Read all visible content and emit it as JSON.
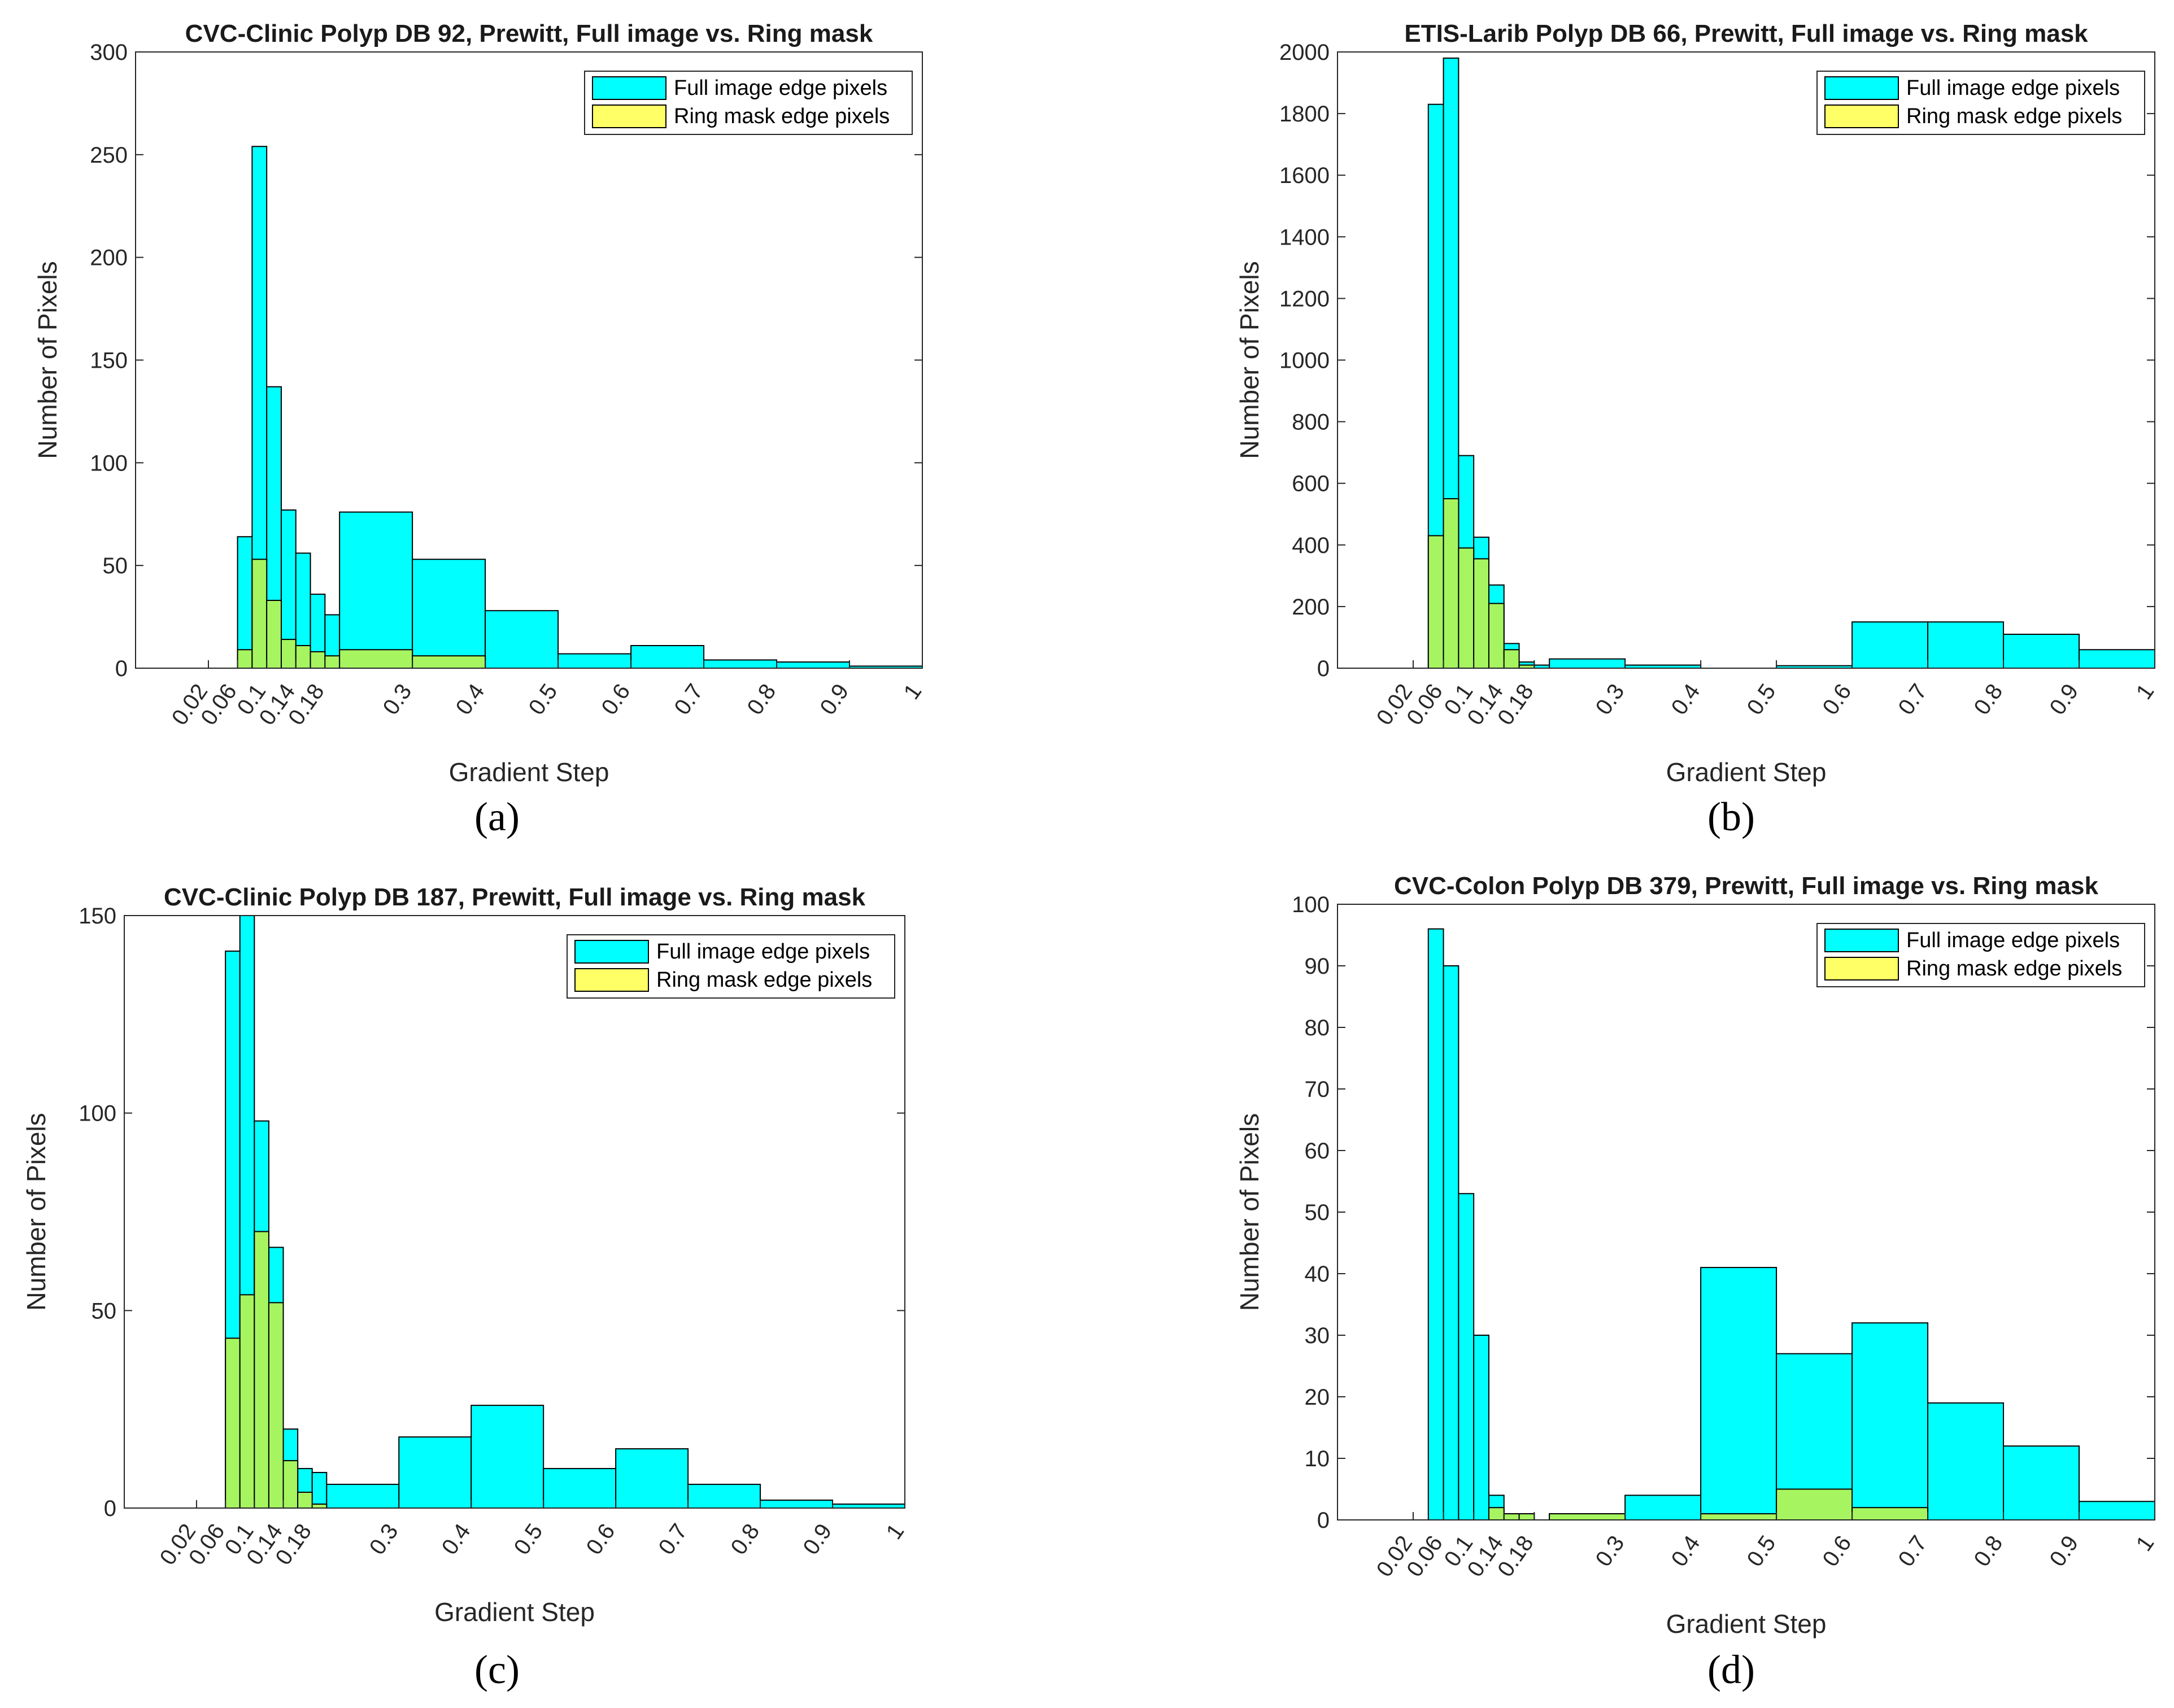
{
  "chart_data": [
    {
      "panel": "(a)",
      "type": "bar",
      "title": "CVC-Clinic Polyp DB 92, Prewitt, Full image vs. Ring mask",
      "xlabel": "Gradient Step",
      "ylabel": "Number of Pixels",
      "ylim": [
        0,
        300
      ],
      "yticks": [
        0,
        50,
        100,
        150,
        200,
        250,
        300
      ],
      "xticks": [
        "0.02",
        "0.06",
        "0.1",
        "0.14",
        "0.18",
        "0.3",
        "0.4",
        "0.5",
        "0.6",
        "0.7",
        "0.8",
        "0.9",
        "1"
      ],
      "legend": [
        "Full image edge pixels",
        "Ring mask edge pixels"
      ],
      "legend_position": "top-right",
      "series": [
        {
          "name": "Full image edge pixels",
          "color": "#00FFFF",
          "bins": [
            [
              0.06,
              0.08
            ],
            [
              0.08,
              0.1
            ],
            [
              0.1,
              0.12
            ],
            [
              0.12,
              0.14
            ],
            [
              0.14,
              0.16
            ],
            [
              0.16,
              0.18
            ],
            [
              0.18,
              0.2
            ],
            [
              0.2,
              0.3
            ],
            [
              0.3,
              0.4
            ],
            [
              0.4,
              0.5
            ],
            [
              0.5,
              0.6
            ],
            [
              0.6,
              0.7
            ],
            [
              0.7,
              0.8
            ],
            [
              0.8,
              0.9
            ],
            [
              0.9,
              1.0
            ]
          ],
          "values": [
            64,
            254,
            137,
            77,
            56,
            36,
            26,
            76,
            53,
            28,
            7,
            11,
            4,
            3,
            1
          ]
        },
        {
          "name": "Ring mask edge pixels",
          "color": "#FFFF66",
          "bins": [
            [
              0.06,
              0.08
            ],
            [
              0.08,
              0.1
            ],
            [
              0.1,
              0.12
            ],
            [
              0.12,
              0.14
            ],
            [
              0.14,
              0.16
            ],
            [
              0.16,
              0.18
            ],
            [
              0.18,
              0.2
            ],
            [
              0.2,
              0.3
            ],
            [
              0.3,
              0.4
            ]
          ],
          "values": [
            9,
            53,
            33,
            14,
            11,
            8,
            6,
            9,
            6
          ]
        }
      ]
    },
    {
      "panel": "(b)",
      "type": "bar",
      "title": "ETIS-Larib Polyp DB 66, Prewitt, Full image vs. Ring mask",
      "xlabel": "Gradient Step",
      "ylabel": "Number of Pixels",
      "ylim": [
        0,
        2000
      ],
      "yticks": [
        0,
        200,
        400,
        600,
        800,
        1000,
        1200,
        1400,
        1600,
        1800,
        2000
      ],
      "xticks": [
        "0.02",
        "0.06",
        "0.1",
        "0.14",
        "0.18",
        "0.3",
        "0.4",
        "0.5",
        "0.6",
        "0.7",
        "0.8",
        "0.9",
        "1"
      ],
      "legend": [
        "Full image edge pixels",
        "Ring mask edge pixels"
      ],
      "legend_position": "top-right",
      "series": [
        {
          "name": "Full image edge pixels",
          "color": "#00FFFF",
          "bins": [
            [
              0.04,
              0.06
            ],
            [
              0.06,
              0.08
            ],
            [
              0.08,
              0.1
            ],
            [
              0.1,
              0.12
            ],
            [
              0.12,
              0.14
            ],
            [
              0.14,
              0.16
            ],
            [
              0.16,
              0.18
            ],
            [
              0.18,
              0.2
            ],
            [
              0.2,
              0.3
            ],
            [
              0.3,
              0.4
            ],
            [
              0.5,
              0.6
            ],
            [
              0.6,
              0.7
            ],
            [
              0.7,
              0.8
            ],
            [
              0.8,
              0.9
            ],
            [
              0.9,
              1.0
            ]
          ],
          "values": [
            1830,
            1980,
            690,
            425,
            270,
            80,
            20,
            10,
            30,
            10,
            8,
            150,
            150,
            110,
            60
          ]
        },
        {
          "name": "Ring mask edge pixels",
          "color": "#FFFF66",
          "bins": [
            [
              0.04,
              0.06
            ],
            [
              0.06,
              0.08
            ],
            [
              0.08,
              0.1
            ],
            [
              0.1,
              0.12
            ],
            [
              0.12,
              0.14
            ],
            [
              0.14,
              0.16
            ],
            [
              0.16,
              0.18
            ]
          ],
          "values": [
            430,
            550,
            390,
            355,
            210,
            60,
            10
          ]
        }
      ]
    },
    {
      "panel": "(c)",
      "type": "bar",
      "title": "CVC-Clinic Polyp DB 187, Prewitt, Full image vs. Ring mask",
      "xlabel": "Gradient Step",
      "ylabel": "Number of Pixels",
      "ylim": [
        0,
        150
      ],
      "yticks": [
        0,
        50,
        100,
        150
      ],
      "xticks": [
        "0.02",
        "0.06",
        "0.1",
        "0.14",
        "0.18",
        "0.3",
        "0.4",
        "0.5",
        "0.6",
        "0.7",
        "0.8",
        "0.9",
        "1"
      ],
      "legend": [
        "Full image edge pixels",
        "Ring mask edge pixels"
      ],
      "legend_position": "top-right",
      "series": [
        {
          "name": "Full image edge pixels",
          "color": "#00FFFF",
          "bins": [
            [
              0.06,
              0.08
            ],
            [
              0.08,
              0.1
            ],
            [
              0.1,
              0.12
            ],
            [
              0.12,
              0.14
            ],
            [
              0.14,
              0.16
            ],
            [
              0.16,
              0.18
            ],
            [
              0.18,
              0.2
            ],
            [
              0.2,
              0.3
            ],
            [
              0.3,
              0.4
            ],
            [
              0.4,
              0.5
            ],
            [
              0.5,
              0.6
            ],
            [
              0.6,
              0.7
            ],
            [
              0.7,
              0.8
            ],
            [
              0.8,
              0.9
            ],
            [
              0.9,
              1.0
            ]
          ],
          "values": [
            141,
            150,
            98,
            66,
            20,
            10,
            9,
            6,
            18,
            26,
            10,
            15,
            6,
            2,
            1
          ]
        },
        {
          "name": "Ring mask edge pixels",
          "color": "#FFFF66",
          "bins": [
            [
              0.06,
              0.08
            ],
            [
              0.08,
              0.1
            ],
            [
              0.1,
              0.12
            ],
            [
              0.12,
              0.14
            ],
            [
              0.14,
              0.16
            ],
            [
              0.16,
              0.18
            ],
            [
              0.18,
              0.2
            ]
          ],
          "values": [
            43,
            54,
            70,
            52,
            12,
            4,
            1
          ]
        }
      ]
    },
    {
      "panel": "(d)",
      "type": "bar",
      "title": "CVC-Colon Polyp DB 379, Prewitt, Full image vs. Ring mask",
      "xlabel": "Gradient Step",
      "ylabel": "Number of Pixels",
      "ylim": [
        0,
        100
      ],
      "yticks": [
        0,
        10,
        20,
        30,
        40,
        50,
        60,
        70,
        80,
        90,
        100
      ],
      "xticks": [
        "0.02",
        "0.06",
        "0.1",
        "0.14",
        "0.18",
        "0.3",
        "0.4",
        "0.5",
        "0.6",
        "0.7",
        "0.8",
        "0.9",
        "1"
      ],
      "legend": [
        "Full image edge pixels",
        "Ring mask edge pixels"
      ],
      "legend_position": "top-right",
      "series": [
        {
          "name": "Full image edge pixels",
          "color": "#00FFFF",
          "bins": [
            [
              0.04,
              0.06
            ],
            [
              0.06,
              0.08
            ],
            [
              0.08,
              0.1
            ],
            [
              0.1,
              0.12
            ],
            [
              0.12,
              0.14
            ],
            [
              0.14,
              0.16
            ],
            [
              0.16,
              0.18
            ],
            [
              0.2,
              0.3
            ],
            [
              0.3,
              0.4
            ],
            [
              0.4,
              0.5
            ],
            [
              0.5,
              0.6
            ],
            [
              0.6,
              0.7
            ],
            [
              0.7,
              0.8
            ],
            [
              0.8,
              0.9
            ],
            [
              0.9,
              1.0
            ]
          ],
          "values": [
            96,
            90,
            53,
            30,
            4,
            1,
            1,
            1,
            4,
            41,
            27,
            32,
            19,
            12,
            3
          ]
        },
        {
          "name": "Ring mask edge pixels",
          "color": "#FFFF66",
          "bins": [
            [
              0.12,
              0.14
            ],
            [
              0.14,
              0.16
            ],
            [
              0.16,
              0.18
            ],
            [
              0.2,
              0.3
            ],
            [
              0.4,
              0.5
            ],
            [
              0.5,
              0.6
            ],
            [
              0.6,
              0.7
            ]
          ],
          "values": [
            2,
            1,
            1,
            1,
            1,
            5,
            2
          ]
        }
      ]
    }
  ]
}
